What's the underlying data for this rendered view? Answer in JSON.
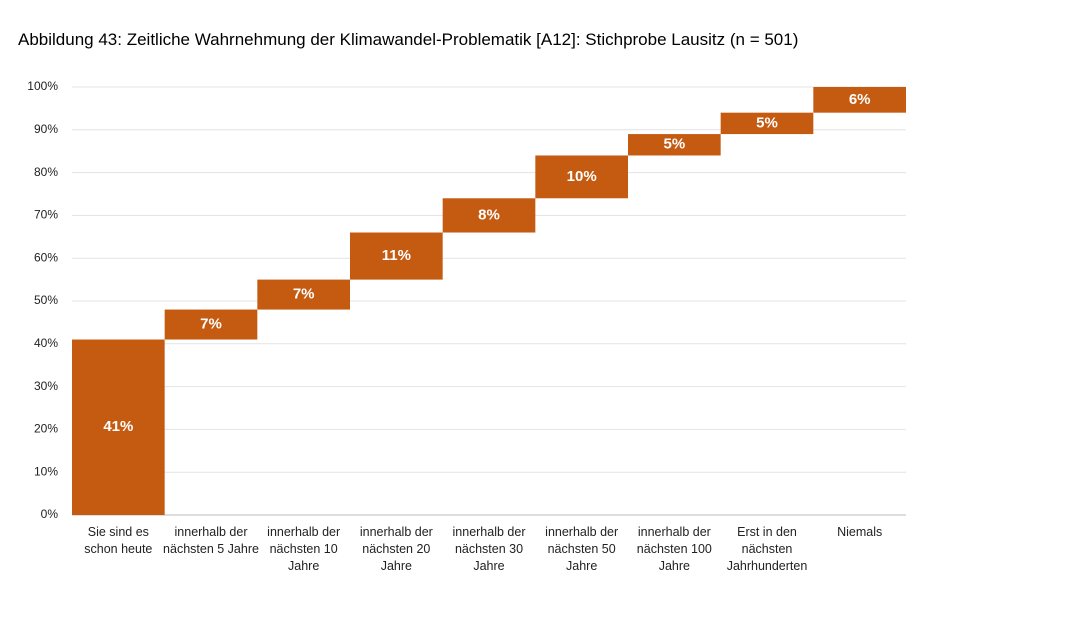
{
  "chart_data": {
    "type": "waterfall",
    "title": "Abbildung 43: Zeitliche Wahrnehmung der Klimawandel-Problematik [A12]: Stichprobe Lausitz (n = 501)",
    "categories": [
      "Sie sind es schon heute",
      "innerhalb der nächsten 5 Jahre",
      "innerhalb der nächsten 10 Jahre",
      "innerhalb der nächsten 20 Jahre",
      "innerhalb der nächsten 30 Jahre",
      "innerhalb der nächsten 50 Jahre",
      "innerhalb der nächsten 100 Jahre",
      "Erst in den nächsten Jahrhunderten",
      "Niemals"
    ],
    "values": [
      41,
      7,
      7,
      11,
      8,
      10,
      5,
      5,
      6
    ],
    "value_labels": [
      "41%",
      "7%",
      "7%",
      "11%",
      "8%",
      "10%",
      "5%",
      "5%",
      "6%"
    ],
    "color": "#c55a11",
    "ylim": [
      0,
      100
    ],
    "yticks": [
      {
        "value": 0,
        "label": "0%"
      },
      {
        "value": 10,
        "label": "10%"
      },
      {
        "value": 20,
        "label": "20%"
      },
      {
        "value": 30,
        "label": "30%"
      },
      {
        "value": 40,
        "label": "40%"
      },
      {
        "value": 50,
        "label": "50%"
      },
      {
        "value": 60,
        "label": "60%"
      },
      {
        "value": 70,
        "label": "70%"
      },
      {
        "value": 80,
        "label": "80%"
      },
      {
        "value": 90,
        "label": "90%"
      },
      {
        "value": 100,
        "label": "100%"
      }
    ],
    "grid": true
  }
}
